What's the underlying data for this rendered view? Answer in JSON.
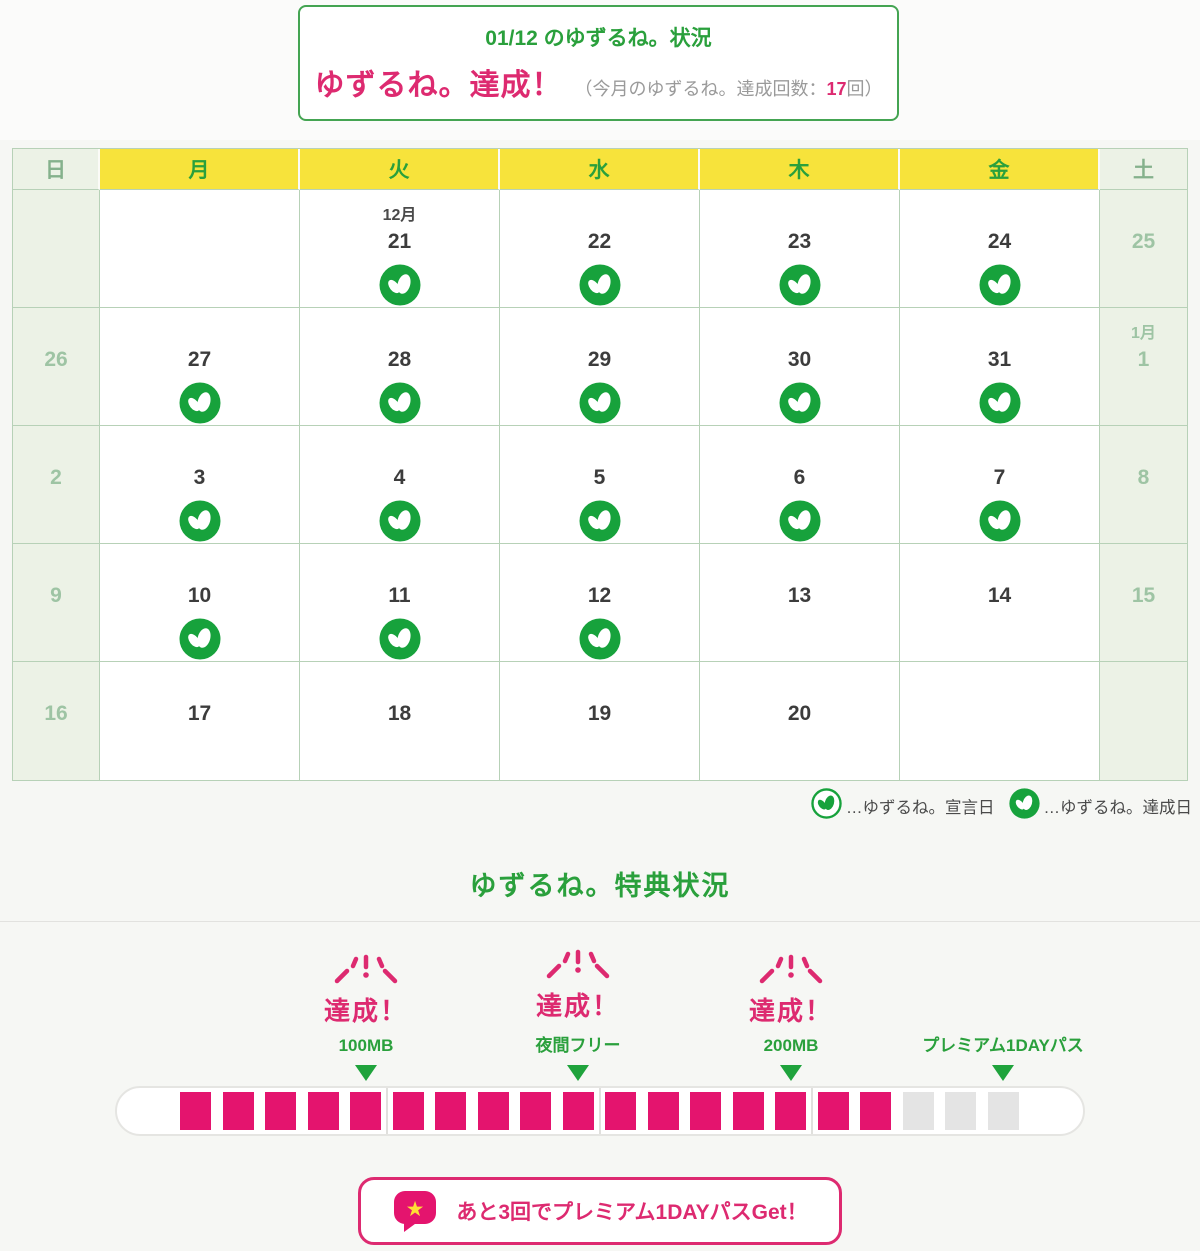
{
  "status_card": {
    "title": "01/12 のゆずるね。状況",
    "result": "ゆずるね。達成！",
    "note_prefix": "（今月のゆずるね。達成回数：",
    "count": "17",
    "note_suffix": "回）"
  },
  "calendar": {
    "day_headers": [
      "日",
      "月",
      "火",
      "水",
      "木",
      "金",
      "土"
    ],
    "weeks": [
      [
        {},
        {},
        {
          "month": "12月",
          "day": "21",
          "icon": "achieved"
        },
        {
          "day": "22",
          "icon": "achieved"
        },
        {
          "day": "23",
          "icon": "achieved"
        },
        {
          "day": "24",
          "icon": "achieved"
        },
        {
          "day": "25"
        }
      ],
      [
        {
          "day": "26"
        },
        {
          "day": "27",
          "icon": "achieved"
        },
        {
          "day": "28",
          "icon": "achieved"
        },
        {
          "day": "29",
          "icon": "achieved"
        },
        {
          "day": "30",
          "icon": "achieved"
        },
        {
          "day": "31",
          "icon": "achieved"
        },
        {
          "month": "1月",
          "day": "1"
        }
      ],
      [
        {
          "day": "2"
        },
        {
          "day": "3",
          "icon": "achieved"
        },
        {
          "day": "4",
          "icon": "achieved"
        },
        {
          "day": "5",
          "icon": "achieved"
        },
        {
          "day": "6",
          "icon": "achieved"
        },
        {
          "day": "7",
          "icon": "achieved"
        },
        {
          "day": "8"
        }
      ],
      [
        {
          "day": "9"
        },
        {
          "day": "10",
          "icon": "achieved"
        },
        {
          "day": "11",
          "icon": "achieved"
        },
        {
          "day": "12",
          "icon": "achieved"
        },
        {
          "day": "13"
        },
        {
          "day": "14"
        },
        {
          "day": "15"
        }
      ],
      [
        {
          "day": "16"
        },
        {
          "day": "17"
        },
        {
          "day": "18"
        },
        {
          "day": "19"
        },
        {
          "day": "20"
        },
        {},
        {}
      ]
    ]
  },
  "legend": [
    {
      "icon": "sprout-declared-icon",
      "label": "…ゆずるね。宣言日"
    },
    {
      "icon": "sprout-achieved-icon",
      "label": "…ゆずるね。達成日"
    }
  ],
  "rewards": {
    "heading": "ゆずるね。特典状況",
    "milestones": [
      {
        "achieved": true,
        "badge": "達成！",
        "label": "100MB"
      },
      {
        "achieved": true,
        "badge": "達成！",
        "label": "夜間フリー"
      },
      {
        "achieved": true,
        "badge": "達成！",
        "label": "200MB"
      },
      {
        "achieved": false,
        "badge": "",
        "label": "プレミアム1DAYパス"
      }
    ],
    "progress": {
      "total": 20,
      "filled": 17,
      "group_size": 5
    },
    "message": "あと3回でプレミアム1DAYパスGet！"
  },
  "colors": {
    "brand_pink": "#dd2a70",
    "segment_pink": "#e4146e",
    "brand_green": "#2aa03c",
    "icon_green": "#17a23c",
    "header_yellow": "#f7e33b",
    "weekend_bg": "#ecf2e6",
    "segment_empty": "#e4e4e4"
  }
}
